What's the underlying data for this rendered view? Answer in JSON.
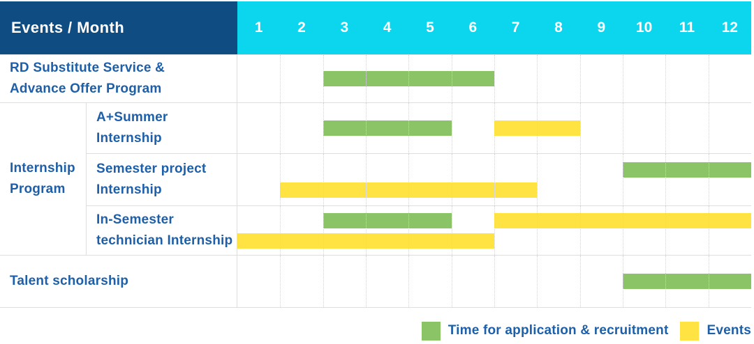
{
  "header": {
    "corner_label": "Events / Month",
    "months": [
      "1",
      "2",
      "3",
      "4",
      "5",
      "6",
      "7",
      "8",
      "9",
      "10",
      "11",
      "12"
    ]
  },
  "colors": {
    "header_bg": "#0e4c82",
    "months_bg": "#0bd6ee",
    "application_green": "#8ac467",
    "events_yellow": "#ffe342",
    "label_text_blue": "#1d5fa8",
    "grid_gray": "#dedede"
  },
  "legend": {
    "application_label": "Time for application & recruitment",
    "events_label": "Events"
  },
  "chart_data": {
    "type": "bar",
    "subtype": "gantt",
    "title": "Events / Month",
    "xlabel": "Month",
    "x_ticks": [
      1,
      2,
      3,
      4,
      5,
      6,
      7,
      8,
      9,
      10,
      11,
      12
    ],
    "x_range": [
      1,
      12
    ],
    "legend_position": "bottom-right",
    "grid": "dotted-vertical-month-lines",
    "series": [
      {
        "name": "Time for application & recruitment",
        "color": "#8ac467"
      },
      {
        "name": "Events",
        "color": "#ffe342"
      }
    ],
    "groups": [
      {
        "name": "Internship Program",
        "label_lines": [
          "Internship",
          "Program"
        ],
        "tasks": [
          "A+Summer Internship",
          "Semester project Internship",
          "In-Semester technician Internship"
        ]
      }
    ],
    "rows": [
      {
        "group": "",
        "task": "RD Substitute Service & Advance Offer Program",
        "label_lines": [
          "RD Substitute Service &",
          "Advance Offer Program"
        ],
        "lines": [
          [
            {
              "series": 0,
              "start_month": 3,
              "end_month": 6
            }
          ]
        ]
      },
      {
        "group": "Internship Program",
        "task": "A+Summer Internship",
        "label_lines": [
          "A+Summer",
          "Internship"
        ],
        "lines": [
          [
            {
              "series": 0,
              "start_month": 3,
              "end_month": 5
            },
            {
              "series": 1,
              "start_month": 7,
              "end_month": 8
            }
          ]
        ]
      },
      {
        "group": "Internship Program",
        "task": "Semester project Internship",
        "label_lines": [
          "Semester project",
          "Internship"
        ],
        "lines": [
          [
            {
              "series": 0,
              "start_month": 10,
              "end_month": 12
            }
          ],
          [
            {
              "series": 1,
              "start_month": 2,
              "end_month": 7
            }
          ]
        ]
      },
      {
        "group": "Internship Program",
        "task": "In-Semester technician Internship",
        "label_lines": [
          "In-Semester",
          "technician Internship"
        ],
        "lines": [
          [
            {
              "series": 0,
              "start_month": 3,
              "end_month": 5
            },
            {
              "series": 1,
              "start_month": 7,
              "end_month": 12
            }
          ],
          [
            {
              "series": 1,
              "start_month": 1,
              "end_month": 6
            }
          ]
        ]
      },
      {
        "group": "",
        "task": "Talent scholarship",
        "label_lines": [
          "Talent scholarship"
        ],
        "lines": [
          [
            {
              "series": 0,
              "start_month": 10,
              "end_month": 12
            }
          ]
        ]
      }
    ]
  }
}
